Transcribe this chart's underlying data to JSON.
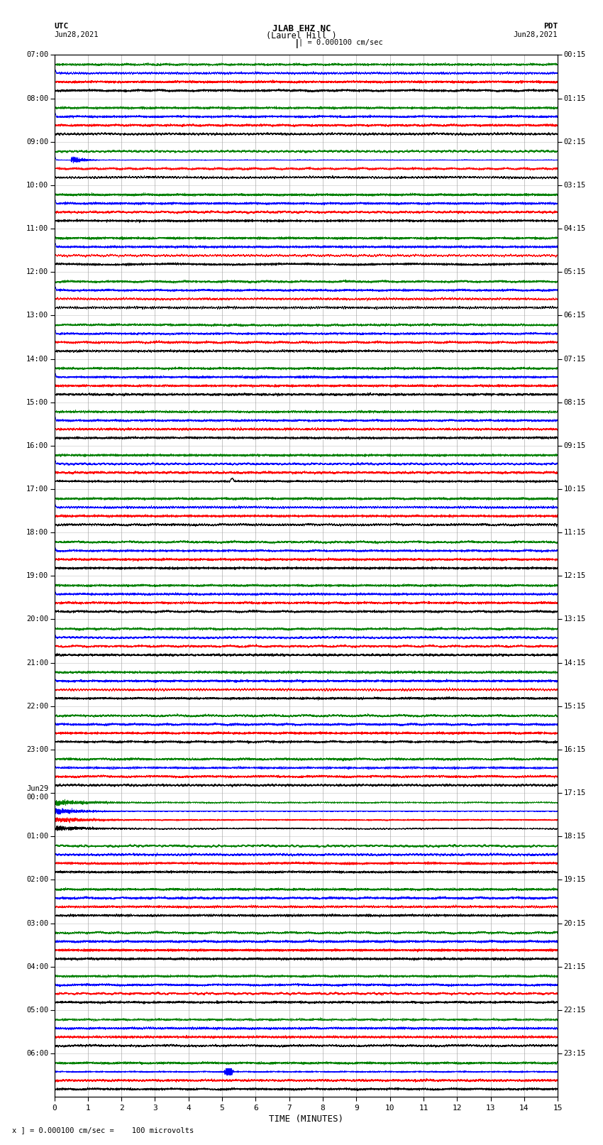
{
  "title_line1": "JLAB EHZ NC",
  "title_line2": "(Laurel Hill )",
  "scale_text": "| = 0.000100 cm/sec",
  "left_label_top": "UTC",
  "left_label_date": "Jun28,2021",
  "right_label_top": "PDT",
  "right_label_date": "Jun28,2021",
  "bottom_label": "TIME (MINUTES)",
  "footnote": "x ] = 0.000100 cm/sec =    100 microvolts",
  "left_times_utc": [
    "07:00",
    "08:00",
    "09:00",
    "10:00",
    "11:00",
    "12:00",
    "13:00",
    "14:00",
    "15:00",
    "16:00",
    "17:00",
    "18:00",
    "19:00",
    "20:00",
    "21:00",
    "22:00",
    "23:00",
    "Jun29\n00:00",
    "01:00",
    "02:00",
    "03:00",
    "04:00",
    "05:00",
    "06:00"
  ],
  "right_times_pdt": [
    "00:15",
    "01:15",
    "02:15",
    "03:15",
    "04:15",
    "05:15",
    "06:15",
    "07:15",
    "08:15",
    "09:15",
    "10:15",
    "11:15",
    "12:15",
    "13:15",
    "14:15",
    "15:15",
    "16:15",
    "17:15",
    "18:15",
    "19:15",
    "20:15",
    "21:15",
    "22:15",
    "23:15"
  ],
  "num_rows": 24,
  "x_min": 0,
  "x_max": 15,
  "colors": [
    "black",
    "red",
    "blue",
    "green"
  ],
  "num_traces_per_row": 4,
  "bg_color": "white",
  "grid_color": "#999999",
  "fig_width": 8.5,
  "fig_height": 16.13
}
